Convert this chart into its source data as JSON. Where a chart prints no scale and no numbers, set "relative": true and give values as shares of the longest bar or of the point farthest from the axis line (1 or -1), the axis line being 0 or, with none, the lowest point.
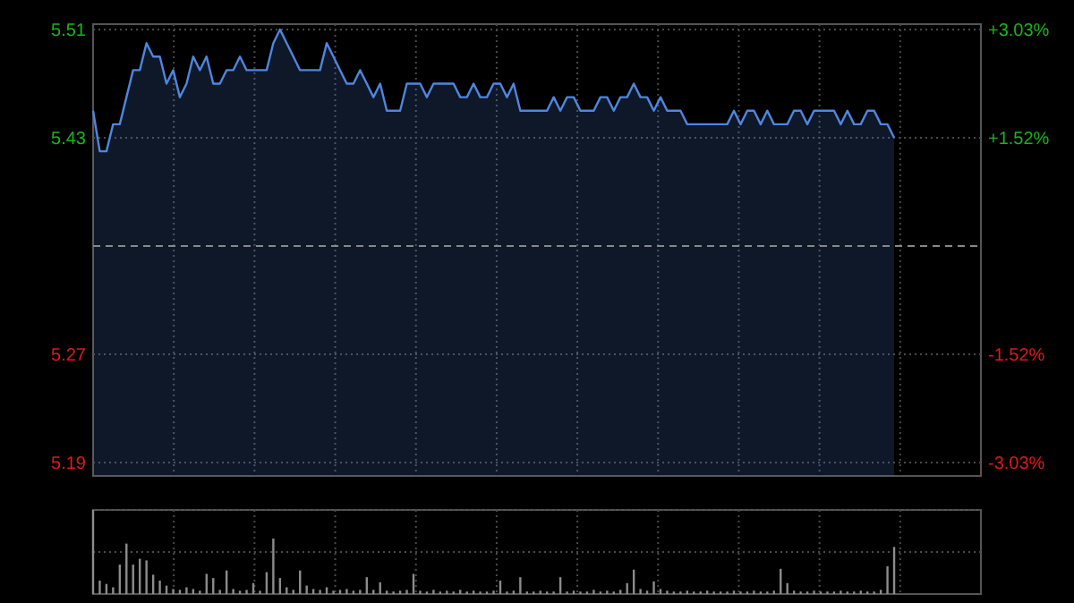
{
  "chart_data": [
    {
      "type": "area",
      "categories": [
        null,
        null,
        null,
        null,
        null,
        null,
        null,
        null,
        null,
        null,
        null,
        null,
        null,
        null,
        null,
        null,
        null,
        null,
        null,
        null,
        null,
        null,
        null,
        null,
        null,
        null,
        null,
        null,
        null,
        null,
        null,
        null,
        null,
        null,
        null,
        null,
        null,
        null,
        null,
        null,
        null,
        null,
        null,
        null,
        null,
        null,
        null,
        null,
        null,
        null,
        null,
        null,
        null,
        null,
        null,
        null,
        null,
        null,
        null,
        null,
        null,
        null,
        null,
        null,
        null,
        null,
        null,
        null,
        null,
        null,
        null,
        null,
        null,
        null,
        null,
        null,
        null,
        null,
        null,
        null,
        null,
        null,
        null,
        null,
        null,
        null,
        null,
        null,
        null,
        null,
        null,
        null,
        null,
        null,
        null,
        null,
        null,
        null,
        null,
        null,
        null,
        null,
        null,
        null,
        null,
        null,
        null,
        null,
        null,
        null,
        null,
        null,
        null,
        null,
        null,
        null,
        null,
        null,
        null,
        null,
        null,
        null,
        null,
        null,
        null,
        null,
        null,
        null,
        null,
        null,
        null,
        null,
        null,
        null
      ],
      "series": [
        {
          "color": "#4f86e0",
          "values": [
            5.45,
            5.42,
            5.42,
            5.44,
            5.44,
            5.46,
            5.48,
            5.48,
            5.5,
            5.49,
            5.49,
            5.47,
            5.48,
            5.46,
            5.47,
            5.49,
            5.48,
            5.49,
            5.47,
            5.47,
            5.48,
            5.48,
            5.49,
            5.48,
            5.48,
            5.48,
            5.48,
            5.5,
            5.51,
            5.5,
            5.49,
            5.48,
            5.48,
            5.48,
            5.48,
            5.5,
            5.49,
            5.48,
            5.47,
            5.47,
            5.48,
            5.47,
            5.46,
            5.47,
            5.45,
            5.45,
            5.45,
            5.47,
            5.47,
            5.47,
            5.46,
            5.47,
            5.47,
            5.47,
            5.47,
            5.46,
            5.46,
            5.47,
            5.46,
            5.46,
            5.47,
            5.47,
            5.46,
            5.47,
            5.45,
            5.45,
            5.45,
            5.45,
            5.45,
            5.46,
            5.45,
            5.46,
            5.46,
            5.45,
            5.45,
            5.45,
            5.46,
            5.46,
            5.45,
            5.46,
            5.46,
            5.47,
            5.46,
            5.46,
            5.45,
            5.46,
            5.45,
            5.45,
            5.45,
            5.44,
            5.44,
            5.44,
            5.44,
            5.44,
            5.44,
            5.44,
            5.45,
            5.44,
            5.45,
            5.45,
            5.44,
            5.45,
            5.44,
            5.44,
            5.44,
            5.45,
            5.45,
            5.44,
            5.45,
            5.45,
            5.45,
            5.45,
            5.44,
            5.45,
            5.44,
            5.44,
            5.45,
            5.45,
            5.44,
            5.44,
            5.43,
            null,
            null,
            null,
            null,
            null,
            null,
            null,
            null,
            null,
            null,
            null,
            null,
            null
          ]
        }
      ],
      "ylim": [
        5.18,
        5.514
      ],
      "yticks": [
        5.19,
        5.27,
        5.43,
        5.51
      ],
      "y2lim": [
        -3.22,
        3.11
      ],
      "y2ticks": [
        {
          "value": 3.03,
          "label": "+3.03%"
        },
        {
          "value": 1.52,
          "label": "+1.52%"
        },
        {
          "value": -1.52,
          "label": "-1.52%"
        },
        {
          "value": -3.03,
          "label": "-3.03%"
        }
      ],
      "grid": true,
      "ref_lines": [
        {
          "axis": "y",
          "value": 5.35,
          "color": "#888888",
          "line_style": "dashed"
        }
      ]
    },
    {
      "type": "bar",
      "relative": true,
      "color": "#8c8c8c",
      "grid": true,
      "categories": [
        null,
        null,
        null,
        null,
        null,
        null,
        null,
        null,
        null,
        null,
        null,
        null,
        null,
        null,
        null,
        null,
        null,
        null,
        null,
        null,
        null,
        null,
        null,
        null,
        null,
        null,
        null,
        null,
        null,
        null,
        null,
        null,
        null,
        null,
        null,
        null,
        null,
        null,
        null,
        null,
        null,
        null,
        null,
        null,
        null,
        null,
        null,
        null,
        null,
        null,
        null,
        null,
        null,
        null,
        null,
        null,
        null,
        null,
        null,
        null,
        null,
        null,
        null,
        null,
        null,
        null,
        null,
        null,
        null,
        null,
        null,
        null,
        null,
        null,
        null,
        null,
        null,
        null,
        null,
        null,
        null,
        null,
        null,
        null,
        null,
        null,
        null,
        null,
        null,
        null,
        null,
        null,
        null,
        null,
        null,
        null,
        null,
        null,
        null,
        null,
        null,
        null,
        null,
        null,
        null,
        null,
        null,
        null,
        null,
        null,
        null,
        null,
        null,
        null,
        null,
        null,
        null,
        null,
        null,
        null,
        null,
        null,
        null,
        null,
        null,
        null,
        null,
        null,
        null,
        null,
        null,
        null,
        null,
        null
      ],
      "values": [
        1,
        0.16,
        0.12,
        0.08,
        0.35,
        0.6,
        0.35,
        0.42,
        0.4,
        0.23,
        0.16,
        0.1,
        0.06,
        0.05,
        0.08,
        0.06,
        0.04,
        0.24,
        0.19,
        0.05,
        0.28,
        0.06,
        0.04,
        0.05,
        0.13,
        0.04,
        0.26,
        0.66,
        0.19,
        0.08,
        0.05,
        0.28,
        0.1,
        0.06,
        0.05,
        0.08,
        0.04,
        0.05,
        0.06,
        0.04,
        0.05,
        0.2,
        0.05,
        0.14,
        0.04,
        0.03,
        0.04,
        0.05,
        0.24,
        0.04,
        0.03,
        0.05,
        0.03,
        0.04,
        0.03,
        0.05,
        0.03,
        0.04,
        0.03,
        0.03,
        0.04,
        0.16,
        0.03,
        0.04,
        0.2,
        0.03,
        0.03,
        0.04,
        0.03,
        0.03,
        0.2,
        0.03,
        0.04,
        0.03,
        0.03,
        0.05,
        0.03,
        0.04,
        0.03,
        0.05,
        0.13,
        0.29,
        0.06,
        0.04,
        0.15,
        0.06,
        0.04,
        0.03,
        0.03,
        0.04,
        0.03,
        0.03,
        0.04,
        0.03,
        0.03,
        0.03,
        0.04,
        0.03,
        0.03,
        0.04,
        0.03,
        0.03,
        0.04,
        0.3,
        0.13,
        0.04,
        0.03,
        0.03,
        0.04,
        0.03,
        0.03,
        0.03,
        0.04,
        0.03,
        0.03,
        0.04,
        0.03,
        0.03,
        0.05,
        0.33,
        0.56,
        null,
        null,
        null,
        null,
        null,
        null,
        null,
        null,
        null,
        null,
        null,
        null,
        null
      ]
    }
  ]
}
